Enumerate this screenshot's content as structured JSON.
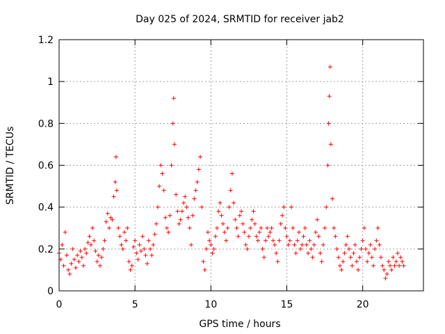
{
  "chart_data": {
    "type": "scatter",
    "title": "Day 025 of 2024, SRMTID for receiver jab2",
    "xlabel": "GPS time / hours",
    "ylabel": "SRMTID / TECUs",
    "xlim": [
      0,
      24
    ],
    "ylim": [
      0,
      1.2
    ],
    "xticks": [
      0,
      5,
      10,
      15,
      20
    ],
    "xtick_labels": [
      "0",
      "5",
      "10",
      "15",
      "20"
    ],
    "yticks": [
      0,
      0.2,
      0.4,
      0.6,
      0.8,
      1.0,
      1.2
    ],
    "ytick_labels": [
      "0",
      "0.2",
      "0.4",
      "0.6",
      "0.8",
      "1",
      "1.2"
    ],
    "grid": true,
    "marker": "+",
    "color": "#ff0000",
    "series": [
      {
        "name": "SRMTID",
        "points": [
          [
            0.0,
            0.18
          ],
          [
            0.1,
            0.15
          ],
          [
            0.2,
            0.22
          ],
          [
            0.3,
            0.12
          ],
          [
            0.4,
            0.28
          ],
          [
            0.5,
            0.17
          ],
          [
            0.6,
            0.1
          ],
          [
            0.7,
            0.08
          ],
          [
            0.8,
            0.13
          ],
          [
            0.9,
            0.2
          ],
          [
            1.0,
            0.15
          ],
          [
            1.1,
            0.11
          ],
          [
            1.2,
            0.17
          ],
          [
            1.3,
            0.14
          ],
          [
            1.4,
            0.19
          ],
          [
            1.5,
            0.16
          ],
          [
            1.6,
            0.12
          ],
          [
            1.7,
            0.2
          ],
          [
            1.8,
            0.18
          ],
          [
            1.9,
            0.23
          ],
          [
            2.0,
            0.26
          ],
          [
            2.1,
            0.22
          ],
          [
            2.2,
            0.3
          ],
          [
            2.3,
            0.24
          ],
          [
            2.4,
            0.19
          ],
          [
            2.5,
            0.14
          ],
          [
            2.6,
            0.17
          ],
          [
            2.7,
            0.12
          ],
          [
            2.8,
            0.16
          ],
          [
            2.9,
            0.2
          ],
          [
            3.0,
            0.24
          ],
          [
            3.1,
            0.33
          ],
          [
            3.2,
            0.37
          ],
          [
            3.3,
            0.3
          ],
          [
            3.4,
            0.35
          ],
          [
            3.5,
            0.34
          ],
          [
            3.6,
            0.45
          ],
          [
            3.7,
            0.52
          ],
          [
            3.75,
            0.64
          ],
          [
            3.8,
            0.48
          ],
          [
            3.9,
            0.3
          ],
          [
            4.0,
            0.26
          ],
          [
            4.1,
            0.22
          ],
          [
            4.2,
            0.2
          ],
          [
            4.3,
            0.28
          ],
          [
            4.4,
            0.24
          ],
          [
            4.5,
            0.3
          ],
          [
            4.6,
            0.14
          ],
          [
            4.7,
            0.1
          ],
          [
            4.8,
            0.12
          ],
          [
            4.9,
            0.21
          ],
          [
            5.0,
            0.24
          ],
          [
            5.1,
            0.18
          ],
          [
            5.2,
            0.15
          ],
          [
            5.3,
            0.22
          ],
          [
            5.4,
            0.19
          ],
          [
            5.5,
            0.26
          ],
          [
            5.6,
            0.2
          ],
          [
            5.7,
            0.17
          ],
          [
            5.8,
            0.13
          ],
          [
            5.9,
            0.24
          ],
          [
            6.0,
            0.2
          ],
          [
            6.1,
            0.17
          ],
          [
            6.2,
            0.22
          ],
          [
            6.3,
            0.27
          ],
          [
            6.4,
            0.32
          ],
          [
            6.5,
            0.4
          ],
          [
            6.6,
            0.5
          ],
          [
            6.7,
            0.6
          ],
          [
            6.8,
            0.56
          ],
          [
            6.9,
            0.48
          ],
          [
            7.0,
            0.35
          ],
          [
            7.1,
            0.3
          ],
          [
            7.2,
            0.28
          ],
          [
            7.3,
            0.36
          ],
          [
            7.4,
            0.6
          ],
          [
            7.5,
            0.8
          ],
          [
            7.55,
            0.92
          ],
          [
            7.6,
            0.7
          ],
          [
            7.7,
            0.46
          ],
          [
            7.8,
            0.38
          ],
          [
            7.9,
            0.32
          ],
          [
            8.0,
            0.34
          ],
          [
            8.1,
            0.38
          ],
          [
            8.2,
            0.42
          ],
          [
            8.3,
            0.45
          ],
          [
            8.4,
            0.4
          ],
          [
            8.5,
            0.35
          ],
          [
            8.6,
            0.3
          ],
          [
            8.7,
            0.22
          ],
          [
            8.8,
            0.36
          ],
          [
            8.9,
            0.44
          ],
          [
            9.0,
            0.48
          ],
          [
            9.1,
            0.52
          ],
          [
            9.2,
            0.58
          ],
          [
            9.3,
            0.64
          ],
          [
            9.4,
            0.4
          ],
          [
            9.5,
            0.14
          ],
          [
            9.6,
            0.1
          ],
          [
            9.7,
            0.2
          ],
          [
            9.8,
            0.28
          ],
          [
            9.9,
            0.24
          ],
          [
            10.0,
            0.22
          ],
          [
            10.1,
            0.18
          ],
          [
            10.2,
            0.2
          ],
          [
            10.3,
            0.26
          ],
          [
            10.4,
            0.3
          ],
          [
            10.5,
            0.38
          ],
          [
            10.6,
            0.42
          ],
          [
            10.7,
            0.36
          ],
          [
            10.8,
            0.32
          ],
          [
            10.9,
            0.28
          ],
          [
            11.0,
            0.24
          ],
          [
            11.1,
            0.3
          ],
          [
            11.2,
            0.4
          ],
          [
            11.3,
            0.48
          ],
          [
            11.4,
            0.56
          ],
          [
            11.5,
            0.42
          ],
          [
            11.6,
            0.34
          ],
          [
            11.7,
            0.3
          ],
          [
            11.8,
            0.26
          ],
          [
            11.9,
            0.36
          ],
          [
            12.0,
            0.38
          ],
          [
            12.1,
            0.32
          ],
          [
            12.2,
            0.28
          ],
          [
            12.3,
            0.22
          ],
          [
            12.4,
            0.2
          ],
          [
            12.5,
            0.26
          ],
          [
            12.6,
            0.3
          ],
          [
            12.7,
            0.34
          ],
          [
            12.8,
            0.38
          ],
          [
            12.9,
            0.32
          ],
          [
            13.0,
            0.26
          ],
          [
            13.1,
            0.24
          ],
          [
            13.2,
            0.28
          ],
          [
            13.3,
            0.3
          ],
          [
            13.4,
            0.2
          ],
          [
            13.5,
            0.16
          ],
          [
            13.6,
            0.24
          ],
          [
            13.7,
            0.3
          ],
          [
            13.8,
            0.26
          ],
          [
            13.9,
            0.28
          ],
          [
            14.0,
            0.3
          ],
          [
            14.1,
            0.24
          ],
          [
            14.2,
            0.22
          ],
          [
            14.3,
            0.18
          ],
          [
            14.4,
            0.14
          ],
          [
            14.5,
            0.24
          ],
          [
            14.6,
            0.32
          ],
          [
            14.7,
            0.36
          ],
          [
            14.8,
            0.4
          ],
          [
            14.9,
            0.3
          ],
          [
            15.0,
            0.26
          ],
          [
            15.1,
            0.22
          ],
          [
            15.2,
            0.24
          ],
          [
            15.3,
            0.4
          ],
          [
            15.4,
            0.3
          ],
          [
            15.5,
            0.22
          ],
          [
            15.6,
            0.18
          ],
          [
            15.7,
            0.24
          ],
          [
            15.8,
            0.28
          ],
          [
            15.9,
            0.2
          ],
          [
            16.0,
            0.22
          ],
          [
            16.1,
            0.26
          ],
          [
            16.2,
            0.3
          ],
          [
            16.3,
            0.22
          ],
          [
            16.4,
            0.18
          ],
          [
            16.5,
            0.24
          ],
          [
            16.6,
            0.2
          ],
          [
            16.7,
            0.16
          ],
          [
            16.8,
            0.22
          ],
          [
            16.9,
            0.28
          ],
          [
            17.0,
            0.34
          ],
          [
            17.1,
            0.26
          ],
          [
            17.2,
            0.18
          ],
          [
            17.3,
            0.14
          ],
          [
            17.4,
            0.22
          ],
          [
            17.5,
            0.3
          ],
          [
            17.6,
            0.4
          ],
          [
            17.7,
            0.6
          ],
          [
            17.75,
            0.8
          ],
          [
            17.8,
            0.93
          ],
          [
            17.85,
            1.07
          ],
          [
            17.9,
            0.7
          ],
          [
            18.0,
            0.44
          ],
          [
            18.1,
            0.3
          ],
          [
            18.2,
            0.26
          ],
          [
            18.3,
            0.2
          ],
          [
            18.4,
            0.16
          ],
          [
            18.5,
            0.12
          ],
          [
            18.6,
            0.1
          ],
          [
            18.7,
            0.14
          ],
          [
            18.8,
            0.18
          ],
          [
            18.9,
            0.22
          ],
          [
            19.0,
            0.26
          ],
          [
            19.1,
            0.2
          ],
          [
            19.2,
            0.16
          ],
          [
            19.3,
            0.12
          ],
          [
            19.4,
            0.18
          ],
          [
            19.5,
            0.22
          ],
          [
            19.6,
            0.14
          ],
          [
            19.7,
            0.1
          ],
          [
            19.8,
            0.16
          ],
          [
            19.9,
            0.2
          ],
          [
            20.0,
            0.24
          ],
          [
            20.1,
            0.3
          ],
          [
            20.2,
            0.2
          ],
          [
            20.3,
            0.14
          ],
          [
            20.4,
            0.18
          ],
          [
            20.5,
            0.22
          ],
          [
            20.6,
            0.16
          ],
          [
            20.7,
            0.12
          ],
          [
            20.8,
            0.2
          ],
          [
            20.9,
            0.24
          ],
          [
            21.0,
            0.3
          ],
          [
            21.1,
            0.22
          ],
          [
            21.2,
            0.16
          ],
          [
            21.3,
            0.12
          ],
          [
            21.4,
            0.1
          ],
          [
            21.5,
            0.06
          ],
          [
            21.6,
            0.08
          ],
          [
            21.7,
            0.14
          ],
          [
            21.8,
            0.12
          ],
          [
            21.9,
            0.1
          ],
          [
            22.0,
            0.16
          ],
          [
            22.1,
            0.12
          ],
          [
            22.2,
            0.14
          ],
          [
            22.3,
            0.18
          ],
          [
            22.4,
            0.12
          ],
          [
            22.5,
            0.16
          ],
          [
            22.6,
            0.14
          ],
          [
            22.7,
            0.12
          ]
        ]
      }
    ]
  }
}
